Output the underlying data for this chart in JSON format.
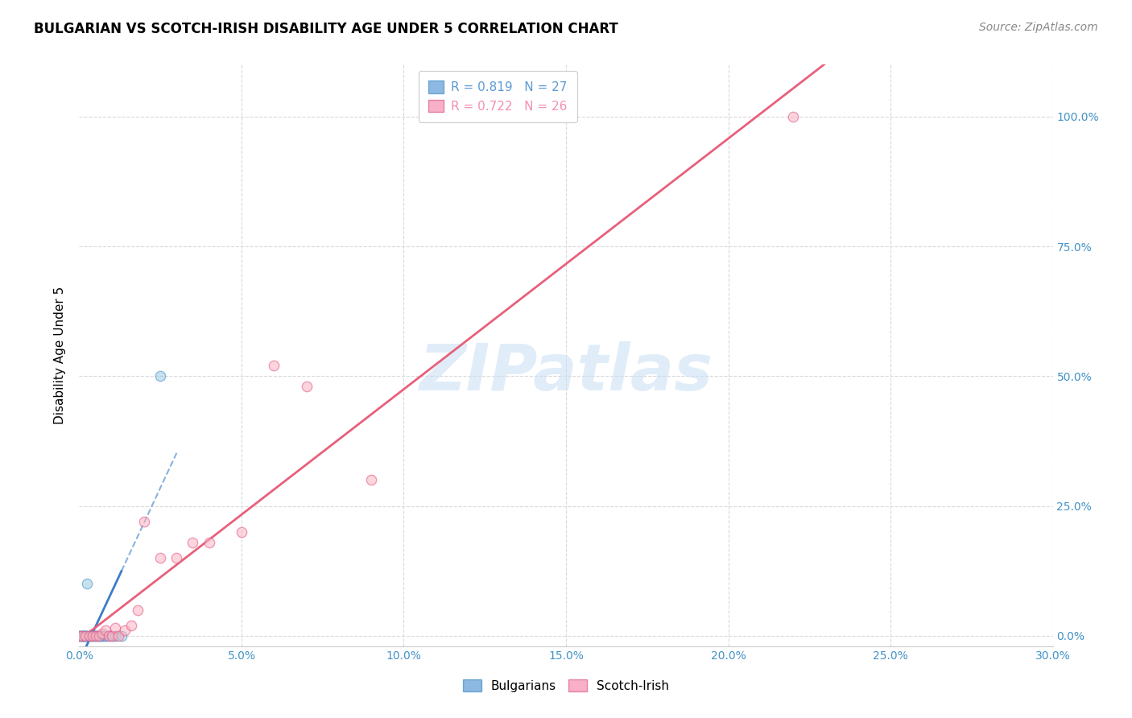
{
  "title": "BULGARIAN VS SCOTCH-IRISH DISABILITY AGE UNDER 5 CORRELATION CHART",
  "source": "Source: ZipAtlas.com",
  "ylabel_label": "Disability Age Under 5",
  "right_ytick_vals": [
    0.0,
    25.0,
    50.0,
    75.0,
    100.0
  ],
  "xlim": [
    0.0,
    30.0
  ],
  "ylim": [
    -2.0,
    110.0
  ],
  "watermark": "ZIPatlas",
  "legend_entry_blue": "R = 0.819   N = 27",
  "legend_entry_pink": "R = 0.722   N = 26",
  "legend_color_blue": "#5b9bd5",
  "legend_color_pink": "#f48fb1",
  "bulgarian_color": "#9ecae1",
  "bulgarian_edge": "#4292c6",
  "scotchirish_color": "#fbb4c1",
  "scotchirish_edge": "#e05b8b",
  "bulgarian_trend_color": "#3a7dc9",
  "scotchirish_trend_color": "#e8607a",
  "title_fontsize": 12,
  "source_fontsize": 10,
  "axis_label_fontsize": 11,
  "tick_fontsize": 10,
  "legend_fontsize": 11,
  "watermark_color": "#c8dff5",
  "grid_color": "#d9d9d9",
  "background_color": "#ffffff",
  "bulgarian_x": [
    0.0,
    0.05,
    0.08,
    0.1,
    0.12,
    0.15,
    0.18,
    0.2,
    0.22,
    0.25,
    0.3,
    0.35,
    0.4,
    0.45,
    0.5,
    0.55,
    0.6,
    0.65,
    0.7,
    0.75,
    0.8,
    0.9,
    1.0,
    1.1,
    1.3,
    0.25,
    2.5
  ],
  "bulgarian_y": [
    0.0,
    0.0,
    0.0,
    0.0,
    0.0,
    0.0,
    0.0,
    0.0,
    0.0,
    0.0,
    0.0,
    0.0,
    0.0,
    0.0,
    0.0,
    0.0,
    0.0,
    0.0,
    0.0,
    0.0,
    0.0,
    0.0,
    0.0,
    0.0,
    0.0,
    10.0,
    50.0
  ],
  "scotchirish_x": [
    0.0,
    0.1,
    0.2,
    0.3,
    0.4,
    0.5,
    0.6,
    0.7,
    0.8,
    0.9,
    1.0,
    1.1,
    1.2,
    1.4,
    1.6,
    1.8,
    2.0,
    2.5,
    3.0,
    3.5,
    4.0,
    5.0,
    6.0,
    7.0,
    9.0,
    22.0
  ],
  "scotchirish_y": [
    0.0,
    0.0,
    0.0,
    0.0,
    0.0,
    0.0,
    0.0,
    0.5,
    1.0,
    0.0,
    0.0,
    1.5,
    0.0,
    1.0,
    2.0,
    5.0,
    22.0,
    15.0,
    15.0,
    18.0,
    18.0,
    20.0,
    52.0,
    48.0,
    30.0,
    100.0
  ],
  "xtick_vals": [
    0,
    5,
    10,
    15,
    20,
    25,
    30
  ],
  "scatter_size": 80
}
